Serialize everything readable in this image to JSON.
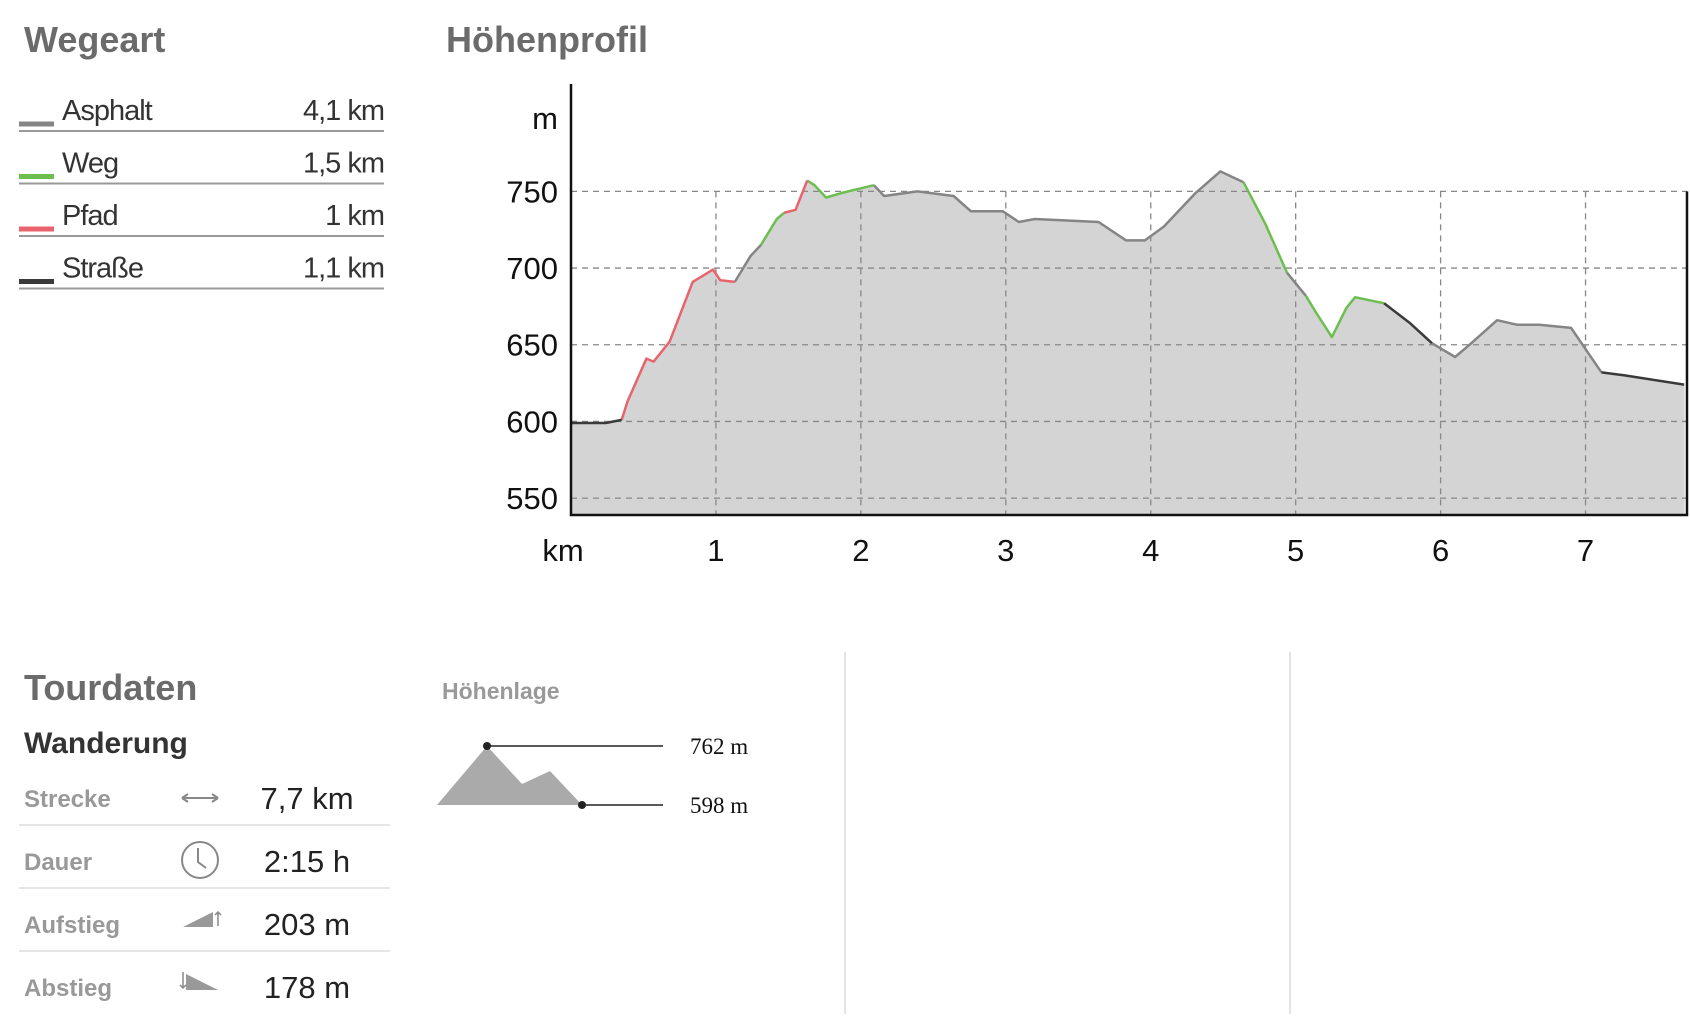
{
  "chart_data": {
    "type": "area",
    "title": "Höhenprofil",
    "legend_title": "Wegeart",
    "y_label": "m",
    "x_label": "km",
    "x": [
      0,
      0.24,
      0.35,
      0.39,
      0.52,
      0.57,
      0.68,
      0.84,
      0.98,
      1.03,
      1.13,
      1.24,
      1.31,
      1.42,
      1.47,
      1.55,
      1.63,
      1.68,
      1.76,
      1.87,
      2.0,
      2.09,
      2.16,
      2.39,
      2.64,
      2.76,
      2.98,
      3.09,
      3.2,
      3.64,
      3.83,
      3.96,
      4.09,
      4.31,
      4.48,
      4.64,
      4.79,
      4.94,
      5.0,
      5.07,
      5.14,
      5.25,
      5.35,
      5.41,
      5.61,
      5.79,
      5.94,
      6.1,
      6.2,
      6.39,
      6.53,
      6.68,
      6.9,
      7.11,
      7.27,
      7.68
    ],
    "series": [
      {
        "name": "Asphalt",
        "distance": "4,1 km",
        "color": "#858585",
        "values": [
          null,
          null,
          null,
          null,
          null,
          null,
          null,
          null,
          null,
          null,
          691,
          708,
          715,
          null,
          null,
          null,
          null,
          null,
          null,
          null,
          null,
          754,
          747,
          750,
          747,
          737,
          737,
          730,
          732,
          730,
          718,
          718,
          727,
          749,
          763,
          756,
          null,
          697,
          690,
          682,
          null,
          null,
          null,
          null,
          null,
          null,
          651,
          642,
          650,
          666,
          663,
          663,
          661,
          632,
          null,
          null
        ]
      },
      {
        "name": "Weg",
        "distance": "1,5 km",
        "color": "#6cbf4f",
        "values": [
          null,
          null,
          null,
          null,
          null,
          null,
          null,
          null,
          null,
          null,
          null,
          null,
          715,
          732,
          736,
          null,
          757,
          754,
          746,
          749,
          752,
          754,
          null,
          null,
          null,
          null,
          null,
          null,
          null,
          null,
          null,
          null,
          null,
          null,
          null,
          756,
          729,
          697,
          null,
          682,
          671,
          655,
          674,
          681,
          677,
          null,
          null,
          null,
          null,
          null,
          null,
          null,
          null,
          null,
          null,
          null
        ]
      },
      {
        "name": "Pfad",
        "distance": "1 km",
        "color": "#e8636b",
        "values": [
          null,
          null,
          601,
          613,
          641,
          639,
          652,
          691,
          699,
          692,
          691,
          null,
          null,
          null,
          736,
          738,
          757,
          null,
          null,
          null,
          null,
          null,
          null,
          null,
          null,
          null,
          null,
          null,
          null,
          null,
          null,
          null,
          null,
          null,
          null,
          null,
          null,
          null,
          null,
          null,
          null,
          null,
          null,
          null,
          null,
          null,
          null,
          null,
          null,
          null,
          null,
          null,
          null,
          null,
          null,
          null
        ]
      },
      {
        "name": "Straße",
        "distance": "1,1 km",
        "color": "#3a3a3a",
        "values": [
          599,
          599,
          601,
          null,
          null,
          null,
          null,
          null,
          null,
          null,
          null,
          null,
          null,
          null,
          null,
          null,
          null,
          null,
          null,
          null,
          null,
          null,
          null,
          null,
          null,
          null,
          null,
          null,
          null,
          null,
          null,
          null,
          null,
          null,
          null,
          null,
          null,
          null,
          null,
          null,
          null,
          null,
          null,
          null,
          677,
          664,
          651,
          null,
          null,
          null,
          null,
          null,
          null,
          632,
          630,
          624
        ]
      }
    ],
    "fill": "#d4d4d4",
    "xlim": [
      0,
      7.7
    ],
    "ylim": [
      539,
      820
    ],
    "xticks": [
      1,
      2,
      3,
      4,
      5,
      6,
      7
    ],
    "yticks": [
      550,
      600,
      650,
      700,
      750
    ],
    "grid": true
  },
  "tour": {
    "title": "Tourdaten",
    "activity": "Wanderung",
    "rows": [
      [
        "Strecke",
        "7,7 km"
      ],
      [
        "Dauer",
        "2:15 h"
      ],
      [
        "Aufstieg",
        "203 m"
      ],
      [
        "Abstieg",
        "178 m"
      ]
    ]
  },
  "altitude": {
    "title": "Höhenlage",
    "max": "762 m",
    "min": "598 m"
  }
}
